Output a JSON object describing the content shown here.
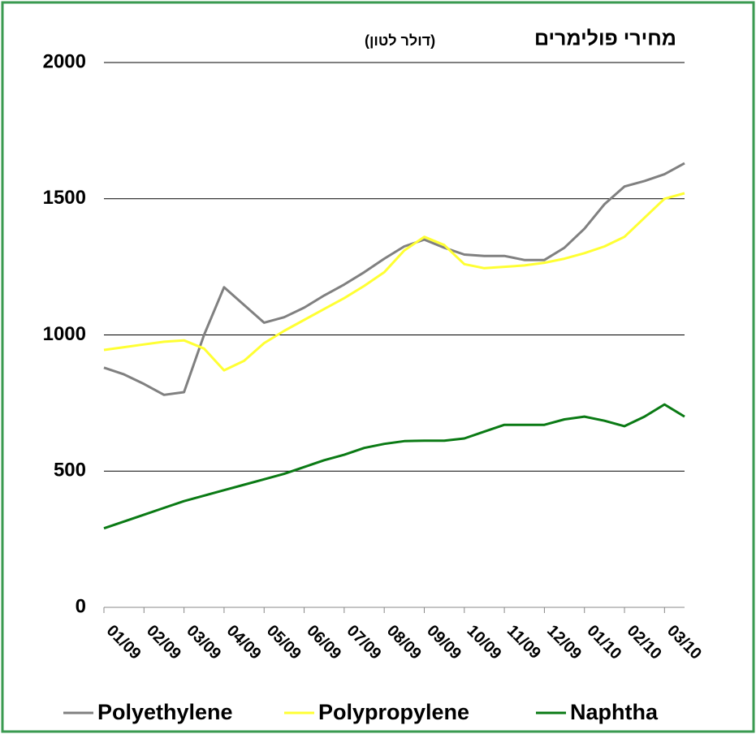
{
  "chart_data": {
    "type": "line",
    "title": "מחירי פולימרים",
    "subtitle": "(דולר לטון)",
    "categories": [
      "01/09",
      null,
      "02/09",
      null,
      "03/09",
      null,
      "04/09",
      null,
      "05/09",
      null,
      "06/09",
      null,
      "07/09",
      null,
      "08/09",
      null,
      "09/09",
      null,
      "10/09",
      null,
      "11/09",
      null,
      "12/09",
      null,
      "01/10",
      null,
      "02/10",
      null,
      "03/10",
      null
    ],
    "series": [
      {
        "name": "Polyethylene",
        "color": "#808080",
        "values": [
          880,
          855,
          820,
          780,
          790,
          1000,
          1175,
          1110,
          1045,
          1065,
          1100,
          1145,
          1185,
          1230,
          1280,
          1325,
          1350,
          1320,
          1295,
          1290,
          1290,
          1275,
          1275,
          1320,
          1390,
          1480,
          1545,
          1565,
          1590,
          1630
        ]
      },
      {
        "name": "Polypropylene",
        "color": "#ffff33",
        "values": [
          945,
          955,
          965,
          975,
          980,
          950,
          870,
          905,
          970,
          1015,
          1055,
          1095,
          1135,
          1180,
          1230,
          1310,
          1360,
          1330,
          1260,
          1245,
          1250,
          1255,
          1265,
          1280,
          1300,
          1325,
          1360,
          1430,
          1500,
          1520
        ]
      },
      {
        "name": "Naphtha",
        "color": "#0a7a14",
        "values": [
          290,
          315,
          340,
          365,
          390,
          410,
          430,
          450,
          470,
          490,
          515,
          540,
          560,
          585,
          600,
          610,
          612,
          612,
          620,
          645,
          670,
          670,
          670,
          690,
          700,
          685,
          665,
          700,
          745,
          700
        ]
      }
    ],
    "ylim": [
      0,
      2000
    ],
    "yticks": [
      0,
      500,
      1000,
      1500,
      2000
    ],
    "grid": true,
    "legend": "bottom"
  }
}
